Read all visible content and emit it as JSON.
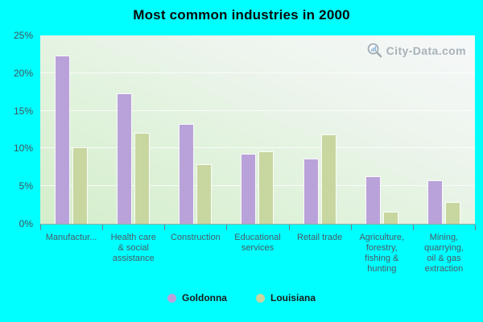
{
  "watermark": {
    "text": "City-Data.com"
  },
  "colors": {
    "page_background": "#00ffff",
    "goldonna": "#b9a2d9",
    "louisiana": "#c8d6a0",
    "axis_text": "#4c5a66",
    "title_text": "#0a0a0a",
    "watermark_text": "#a8b3ba",
    "plot_gradient_start": "#d4eecb",
    "plot_gradient_end": "#f6f8f9"
  },
  "chart_data": {
    "type": "bar",
    "title": "Most common industries in 2000",
    "categories": [
      "Manufactur...",
      "Health care\n& social\nassistance",
      "Construction",
      "Educational\nservices",
      "Retail trade",
      "Agriculture,\nforestry,\nfishing &\nhunting",
      "Mining,\nquarrying,\noil & gas\nextraction"
    ],
    "series": [
      {
        "name": "Goldonna",
        "color": "#b9a2d9",
        "values": [
          22.3,
          17.3,
          13.3,
          9.3,
          8.7,
          6.3,
          5.8
        ]
      },
      {
        "name": "Louisiana",
        "color": "#c8d6a0",
        "values": [
          10.2,
          12.1,
          7.9,
          9.6,
          11.9,
          1.6,
          2.9
        ]
      }
    ],
    "xlabel": "",
    "ylabel": "",
    "ylim": [
      0,
      25
    ],
    "yticks": [
      {
        "value": 0,
        "label": "0%"
      },
      {
        "value": 5,
        "label": "5%"
      },
      {
        "value": 10,
        "label": "10%"
      },
      {
        "value": 15,
        "label": "15%"
      },
      {
        "value": 20,
        "label": "20%"
      },
      {
        "value": 25,
        "label": "25%"
      }
    ],
    "grid": true,
    "legend_position": "bottom"
  }
}
